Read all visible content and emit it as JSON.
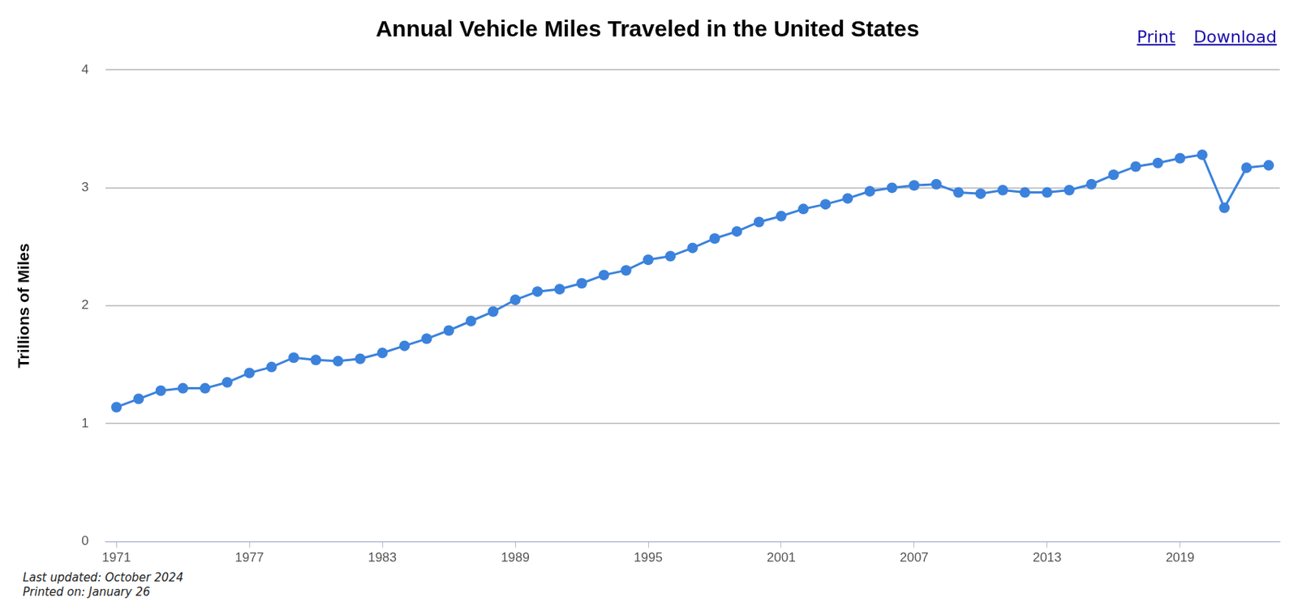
{
  "chart_data": {
    "type": "line",
    "title": "Annual Vehicle Miles Traveled in the United States",
    "y_label": "Trillions of Miles",
    "x": [
      1971,
      1972,
      1973,
      1974,
      1975,
      1976,
      1977,
      1978,
      1979,
      1980,
      1981,
      1982,
      1983,
      1984,
      1985,
      1986,
      1987,
      1988,
      1989,
      1990,
      1991,
      1992,
      1993,
      1994,
      1995,
      1996,
      1997,
      1998,
      1999,
      2000,
      2001,
      2002,
      2003,
      2004,
      2005,
      2006,
      2007,
      2008,
      2009,
      2010,
      2011,
      2012,
      2013,
      2014,
      2015,
      2016,
      2017,
      2018,
      2019,
      2020,
      2021,
      2022,
      2023
    ],
    "values": [
      1.14,
      1.21,
      1.28,
      1.3,
      1.3,
      1.35,
      1.43,
      1.48,
      1.56,
      1.54,
      1.53,
      1.55,
      1.6,
      1.66,
      1.72,
      1.79,
      1.87,
      1.95,
      2.05,
      2.12,
      2.14,
      2.19,
      2.26,
      2.3,
      2.39,
      2.42,
      2.49,
      2.57,
      2.63,
      2.71,
      2.76,
      2.82,
      2.86,
      2.91,
      2.97,
      3.0,
      3.02,
      3.03,
      2.96,
      2.95,
      2.98,
      2.96,
      2.96,
      2.98,
      3.03,
      3.11,
      3.18,
      3.21,
      3.25,
      3.28,
      2.83,
      3.17,
      3.19
    ],
    "color": "#3b82dc",
    "marker": "circle",
    "line_style": "solid",
    "xlim": [
      1970.5,
      2023.5
    ],
    "xticks": [
      1971,
      1977,
      1983,
      1989,
      1995,
      2001,
      2007,
      2013,
      2019
    ],
    "ylim": [
      0,
      4
    ],
    "yticks": [
      0,
      1,
      2,
      3,
      4
    ],
    "grid": true
  },
  "links": [
    "Print",
    "Download"
  ],
  "notes": [
    "Last updated: October 2024",
    "Printed on: January 26"
  ]
}
